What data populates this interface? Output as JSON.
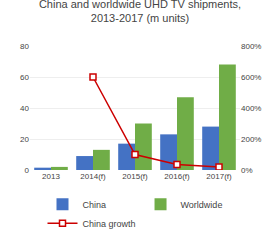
{
  "chart_data": {
    "type": "bar",
    "title": "China and worldwide UHD TV shipments,\n2013-2017 (m units)",
    "categories": [
      "2013",
      "2014(f)",
      "2015(f)",
      "2016(f)",
      "2017(f)"
    ],
    "series": [
      {
        "name": "China",
        "color": "#4472C4",
        "values": [
          1.5,
          9,
          17,
          23,
          28
        ]
      },
      {
        "name": "Worldwide",
        "color": "#70AD47",
        "values": [
          2,
          13,
          30,
          47,
          68
        ]
      },
      {
        "name": "China growth",
        "color": "#CC0000",
        "type": "line",
        "axis": "y2",
        "marker": "square",
        "values": [
          null,
          600,
          100,
          35,
          20
        ]
      }
    ],
    "ylim": [
      0,
      80
    ],
    "yticks": [
      0,
      20,
      40,
      60,
      80
    ],
    "y2lim": [
      0,
      800
    ],
    "y2ticks": [
      {
        "value": 0,
        "label": "0%"
      },
      {
        "value": 200,
        "label": "200%"
      },
      {
        "value": 400,
        "label": "400%"
      },
      {
        "value": 600,
        "label": "600%"
      },
      {
        "value": 800,
        "label": "800%"
      }
    ],
    "grid": true,
    "legend": "bottom"
  }
}
